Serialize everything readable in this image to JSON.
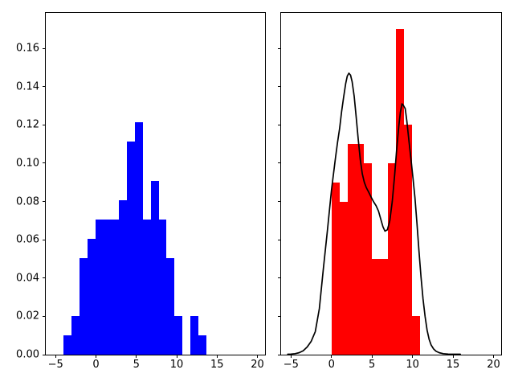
{
  "figure": {
    "background_color": "#ffffff",
    "spine_color": "#000000",
    "tick_label_color": "#000000"
  },
  "chart_data": [
    {
      "type": "bar",
      "panel": "left-histogram",
      "title": "",
      "xlabel": "",
      "ylabel": "",
      "grid": false,
      "legend": null,
      "xlim": [
        -6.22,
        20.94
      ],
      "ylim": [
        0,
        0.1785
      ],
      "bars": {
        "color": "#0000ff",
        "bin_start": -4.0,
        "bin_width": 0.98,
        "heights": [
          0.0101,
          0.0202,
          0.0505,
          0.0606,
          0.0707,
          0.0707,
          0.0707,
          0.0808,
          0.1111,
          0.1212,
          0.0707,
          0.0909,
          0.0707,
          0.0505,
          0.0202,
          0.0,
          0.0202,
          0.0101
        ]
      },
      "xticks": {
        "values": [
          -5,
          0,
          5,
          10,
          15,
          20
        ],
        "labels": [
          "−5",
          "0",
          "5",
          "10",
          "15",
          "20"
        ]
      },
      "yticks": {
        "values": [
          0,
          0.02,
          0.04,
          0.06,
          0.08,
          0.1,
          0.12,
          0.14,
          0.16
        ],
        "labels": [
          "0.00",
          "0.02",
          "0.04",
          "0.06",
          "0.08",
          "0.10",
          "0.12",
          "0.14",
          "0.16"
        ],
        "show_labels": true
      }
    },
    {
      "type": "bar+line",
      "panel": "right-histogram-with-kde",
      "title": "",
      "xlabel": "",
      "ylabel": "",
      "grid": false,
      "legend": null,
      "xlim": [
        -6.22,
        20.94
      ],
      "ylim": [
        0,
        0.1785
      ],
      "bars": {
        "color": "#ff0000",
        "bin_start": 0.0,
        "bin_width": 0.99,
        "heights": [
          0.09,
          0.08,
          0.11,
          0.11,
          0.1,
          0.05,
          0.05,
          0.1,
          0.17,
          0.12,
          0.02
        ]
      },
      "kde_curve": {
        "color": "#000000",
        "linewidth": 1.7,
        "points": [
          [
            -5.4,
            0.0002
          ],
          [
            -5.0,
            0.0003
          ],
          [
            -4.5,
            0.0005
          ],
          [
            -4.0,
            0.001
          ],
          [
            -3.5,
            0.002
          ],
          [
            -3.0,
            0.004
          ],
          [
            -2.5,
            0.007
          ],
          [
            -2.0,
            0.012
          ],
          [
            -1.5,
            0.024
          ],
          [
            -1.0,
            0.045
          ],
          [
            -0.5,
            0.065
          ],
          [
            0.0,
            0.086
          ],
          [
            0.5,
            0.103
          ],
          [
            0.75,
            0.111
          ],
          [
            1.0,
            0.118
          ],
          [
            1.25,
            0.127
          ],
          [
            1.5,
            0.1345
          ],
          [
            1.75,
            0.1415
          ],
          [
            1.95,
            0.1455
          ],
          [
            2.15,
            0.147
          ],
          [
            2.35,
            0.146
          ],
          [
            2.55,
            0.1425
          ],
          [
            2.8,
            0.135
          ],
          [
            3.05,
            0.124
          ],
          [
            3.3,
            0.1125
          ],
          [
            3.55,
            0.102
          ],
          [
            3.8,
            0.0945
          ],
          [
            4.05,
            0.09
          ],
          [
            4.3,
            0.0872
          ],
          [
            4.6,
            0.0848
          ],
          [
            4.9,
            0.0822
          ],
          [
            5.2,
            0.0798
          ],
          [
            5.5,
            0.0778
          ],
          [
            5.8,
            0.075
          ],
          [
            6.1,
            0.0705
          ],
          [
            6.35,
            0.0668
          ],
          [
            6.6,
            0.0645
          ],
          [
            6.9,
            0.0652
          ],
          [
            7.2,
            0.07
          ],
          [
            7.5,
            0.08
          ],
          [
            7.8,
            0.094
          ],
          [
            8.05,
            0.1075
          ],
          [
            8.3,
            0.119
          ],
          [
            8.5,
            0.1265
          ],
          [
            8.7,
            0.131
          ],
          [
            8.9,
            0.13
          ],
          [
            9.1,
            0.1285
          ],
          [
            9.3,
            0.122
          ],
          [
            9.55,
            0.112
          ],
          [
            9.8,
            0.1025
          ],
          [
            10.05,
            0.0925
          ],
          [
            10.3,
            0.082
          ],
          [
            10.55,
            0.0685
          ],
          [
            10.8,
            0.054
          ],
          [
            11.05,
            0.0405
          ],
          [
            11.3,
            0.029
          ],
          [
            11.55,
            0.02
          ],
          [
            11.8,
            0.0128
          ],
          [
            12.05,
            0.008
          ],
          [
            12.3,
            0.005
          ],
          [
            12.6,
            0.003
          ],
          [
            12.9,
            0.0018
          ],
          [
            13.3,
            0.001
          ],
          [
            13.8,
            0.0005
          ],
          [
            14.4,
            0.0003
          ],
          [
            15.0,
            0.0002
          ],
          [
            15.9,
            0.0002
          ]
        ]
      },
      "xticks": {
        "values": [
          -5,
          0,
          5,
          10,
          15,
          20
        ],
        "labels": [
          "−5",
          "0",
          "5",
          "10",
          "15",
          "20"
        ]
      },
      "yticks": {
        "values": [
          0,
          0.02,
          0.04,
          0.06,
          0.08,
          0.1,
          0.12,
          0.14,
          0.16
        ],
        "labels": [
          "0.00",
          "0.02",
          "0.04",
          "0.06",
          "0.08",
          "0.10",
          "0.12",
          "0.14",
          "0.16"
        ],
        "show_labels": false
      }
    }
  ]
}
